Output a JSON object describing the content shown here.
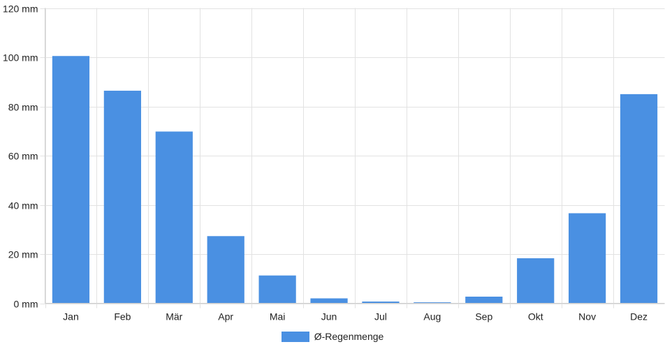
{
  "chart_data": {
    "type": "bar",
    "categories": [
      "Jan",
      "Feb",
      "Mär",
      "Apr",
      "Mai",
      "Jun",
      "Jul",
      "Aug",
      "Sep",
      "Okt",
      "Nov",
      "Dez"
    ],
    "series": [
      {
        "name": "Ø-Regenmenge",
        "values": [
          100.5,
          86.4,
          69.8,
          27.3,
          11.3,
          2.0,
          0.7,
          0.4,
          2.7,
          18.3,
          36.6,
          85.0
        ],
        "color": "#4a90e2"
      }
    ],
    "y_tick_labels": [
      "0 mm",
      "20 mm",
      "40 mm",
      "60 mm",
      "80 mm",
      "100 mm",
      "120 mm"
    ],
    "y_tick_values": [
      0,
      20,
      40,
      60,
      80,
      100,
      120
    ],
    "ylim": [
      0,
      120
    ],
    "grid": true,
    "legend_position": "bottom",
    "title": "",
    "xlabel": "",
    "ylabel": ""
  }
}
